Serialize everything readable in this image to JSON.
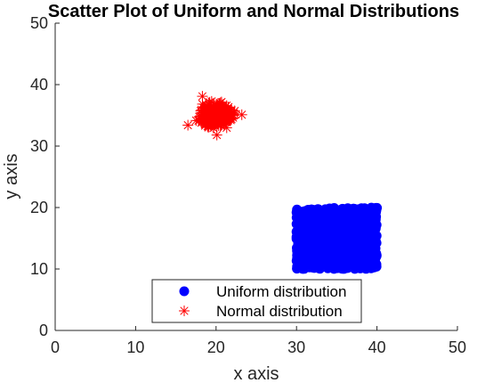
{
  "chart_data": {
    "type": "scatter",
    "title": "Scatter Plot of Uniform and Normal Distributions",
    "xlabel": "x axis",
    "ylabel": "y axis",
    "xlim": [
      0,
      50
    ],
    "ylim": [
      0,
      50
    ],
    "xticks": [
      "0",
      "10",
      "20",
      "30",
      "40",
      "50"
    ],
    "yticks": [
      "0",
      "10",
      "20",
      "30",
      "40",
      "50"
    ],
    "grid": false,
    "legend_position": "bottom-center",
    "series": [
      {
        "name": "Uniform distribution",
        "marker": "filled-circle",
        "color": "#0000ff",
        "distribution": "uniform",
        "x_range": [
          30,
          40
        ],
        "y_range": [
          10,
          20
        ]
      },
      {
        "name": "Normal distribution",
        "marker": "asterisk",
        "color": "#ff0000",
        "distribution": "normal",
        "x_mean": 20,
        "y_mean": 35,
        "x_std": 1,
        "y_std": 1,
        "outliers": [
          [
            16.5,
            33.4
          ],
          [
            18.3,
            38.1
          ],
          [
            23.2,
            35.1
          ],
          [
            20.1,
            31.8
          ]
        ]
      }
    ]
  }
}
